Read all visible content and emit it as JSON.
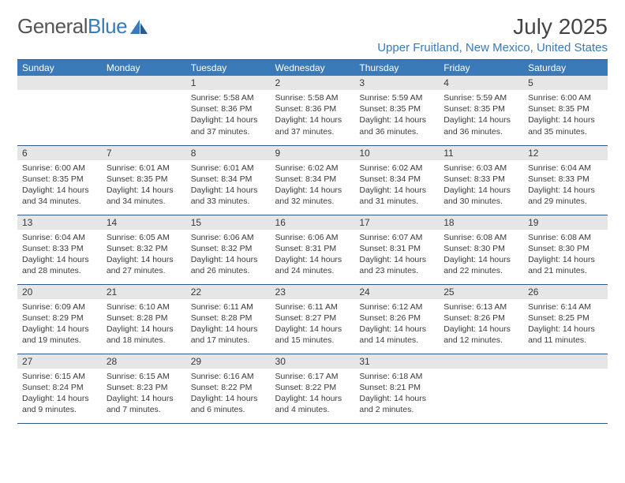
{
  "brand": {
    "part1": "General",
    "part2": "Blue"
  },
  "title": "July 2025",
  "location": "Upper Fruitland, New Mexico, United States",
  "colors": {
    "accent": "#3a7ab8",
    "header_border": "#2d5a8c",
    "daynum_bg": "#e6e6e6",
    "text": "#3a3a3a"
  },
  "columns": [
    "Sunday",
    "Monday",
    "Tuesday",
    "Wednesday",
    "Thursday",
    "Friday",
    "Saturday"
  ],
  "weeks": [
    [
      null,
      null,
      {
        "n": "1",
        "sr": "5:58 AM",
        "ss": "8:36 PM",
        "dl": "14 hours and 37 minutes."
      },
      {
        "n": "2",
        "sr": "5:58 AM",
        "ss": "8:36 PM",
        "dl": "14 hours and 37 minutes."
      },
      {
        "n": "3",
        "sr": "5:59 AM",
        "ss": "8:35 PM",
        "dl": "14 hours and 36 minutes."
      },
      {
        "n": "4",
        "sr": "5:59 AM",
        "ss": "8:35 PM",
        "dl": "14 hours and 36 minutes."
      },
      {
        "n": "5",
        "sr": "6:00 AM",
        "ss": "8:35 PM",
        "dl": "14 hours and 35 minutes."
      }
    ],
    [
      {
        "n": "6",
        "sr": "6:00 AM",
        "ss": "8:35 PM",
        "dl": "14 hours and 34 minutes."
      },
      {
        "n": "7",
        "sr": "6:01 AM",
        "ss": "8:35 PM",
        "dl": "14 hours and 34 minutes."
      },
      {
        "n": "8",
        "sr": "6:01 AM",
        "ss": "8:34 PM",
        "dl": "14 hours and 33 minutes."
      },
      {
        "n": "9",
        "sr": "6:02 AM",
        "ss": "8:34 PM",
        "dl": "14 hours and 32 minutes."
      },
      {
        "n": "10",
        "sr": "6:02 AM",
        "ss": "8:34 PM",
        "dl": "14 hours and 31 minutes."
      },
      {
        "n": "11",
        "sr": "6:03 AM",
        "ss": "8:33 PM",
        "dl": "14 hours and 30 minutes."
      },
      {
        "n": "12",
        "sr": "6:04 AM",
        "ss": "8:33 PM",
        "dl": "14 hours and 29 minutes."
      }
    ],
    [
      {
        "n": "13",
        "sr": "6:04 AM",
        "ss": "8:33 PM",
        "dl": "14 hours and 28 minutes."
      },
      {
        "n": "14",
        "sr": "6:05 AM",
        "ss": "8:32 PM",
        "dl": "14 hours and 27 minutes."
      },
      {
        "n": "15",
        "sr": "6:06 AM",
        "ss": "8:32 PM",
        "dl": "14 hours and 26 minutes."
      },
      {
        "n": "16",
        "sr": "6:06 AM",
        "ss": "8:31 PM",
        "dl": "14 hours and 24 minutes."
      },
      {
        "n": "17",
        "sr": "6:07 AM",
        "ss": "8:31 PM",
        "dl": "14 hours and 23 minutes."
      },
      {
        "n": "18",
        "sr": "6:08 AM",
        "ss": "8:30 PM",
        "dl": "14 hours and 22 minutes."
      },
      {
        "n": "19",
        "sr": "6:08 AM",
        "ss": "8:30 PM",
        "dl": "14 hours and 21 minutes."
      }
    ],
    [
      {
        "n": "20",
        "sr": "6:09 AM",
        "ss": "8:29 PM",
        "dl": "14 hours and 19 minutes."
      },
      {
        "n": "21",
        "sr": "6:10 AM",
        "ss": "8:28 PM",
        "dl": "14 hours and 18 minutes."
      },
      {
        "n": "22",
        "sr": "6:11 AM",
        "ss": "8:28 PM",
        "dl": "14 hours and 17 minutes."
      },
      {
        "n": "23",
        "sr": "6:11 AM",
        "ss": "8:27 PM",
        "dl": "14 hours and 15 minutes."
      },
      {
        "n": "24",
        "sr": "6:12 AM",
        "ss": "8:26 PM",
        "dl": "14 hours and 14 minutes."
      },
      {
        "n": "25",
        "sr": "6:13 AM",
        "ss": "8:26 PM",
        "dl": "14 hours and 12 minutes."
      },
      {
        "n": "26",
        "sr": "6:14 AM",
        "ss": "8:25 PM",
        "dl": "14 hours and 11 minutes."
      }
    ],
    [
      {
        "n": "27",
        "sr": "6:15 AM",
        "ss": "8:24 PM",
        "dl": "14 hours and 9 minutes."
      },
      {
        "n": "28",
        "sr": "6:15 AM",
        "ss": "8:23 PM",
        "dl": "14 hours and 7 minutes."
      },
      {
        "n": "29",
        "sr": "6:16 AM",
        "ss": "8:22 PM",
        "dl": "14 hours and 6 minutes."
      },
      {
        "n": "30",
        "sr": "6:17 AM",
        "ss": "8:22 PM",
        "dl": "14 hours and 4 minutes."
      },
      {
        "n": "31",
        "sr": "6:18 AM",
        "ss": "8:21 PM",
        "dl": "14 hours and 2 minutes."
      },
      null,
      null
    ]
  ],
  "labels": {
    "sunrise": "Sunrise: ",
    "sunset": "Sunset: ",
    "daylight": "Daylight: "
  }
}
